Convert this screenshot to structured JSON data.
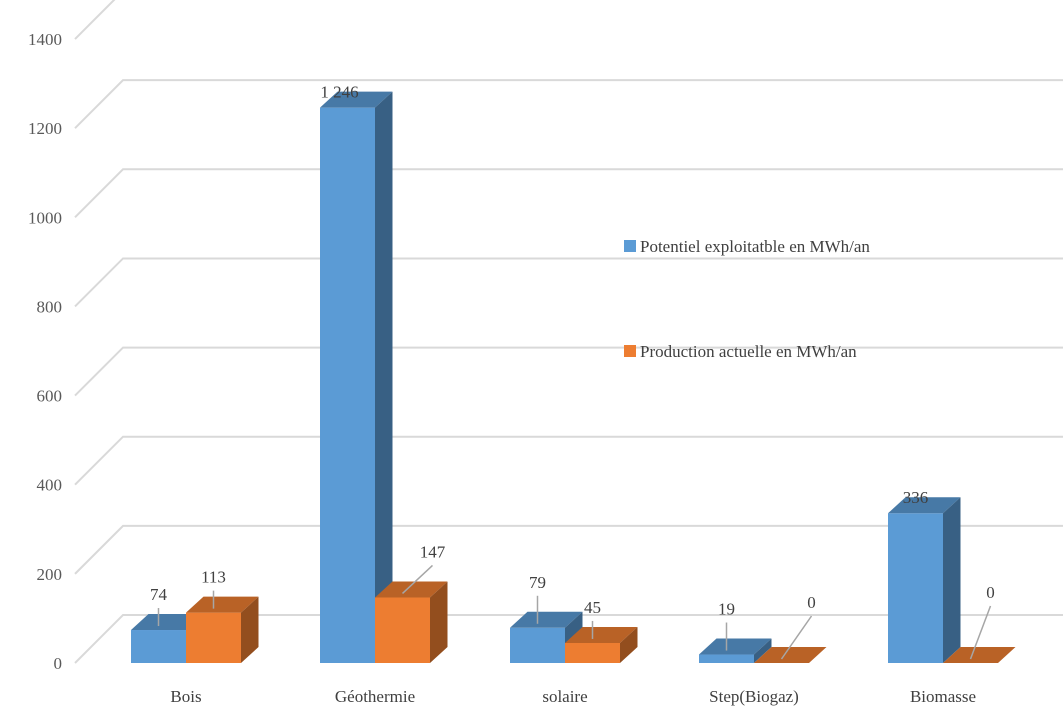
{
  "chart_data": {
    "type": "bar",
    "style": "3d-clustered-column",
    "categories": [
      "Bois",
      "Géothermie",
      "solaire",
      "Step(Biogaz)",
      "Biomasse"
    ],
    "series": [
      {
        "name": "Potentiel exploitatble en MWh/an",
        "color": "#5b9bd5",
        "values": [
          74,
          1246,
          79,
          19,
          336
        ],
        "labels": [
          "74",
          "1 246",
          "79",
          "19",
          "336"
        ]
      },
      {
        "name": "Production actuelle en MWh/an",
        "color": "#ed7d31",
        "values": [
          113,
          147,
          45,
          0,
          0
        ],
        "labels": [
          "113",
          "147",
          "45",
          "0",
          "0"
        ]
      }
    ],
    "y_ticks": [
      "0",
      "200",
      "400",
      "600",
      "800",
      "1000",
      "1200",
      "1400"
    ],
    "ylim": [
      0,
      1400
    ],
    "grid": true,
    "legend_position": "right"
  }
}
